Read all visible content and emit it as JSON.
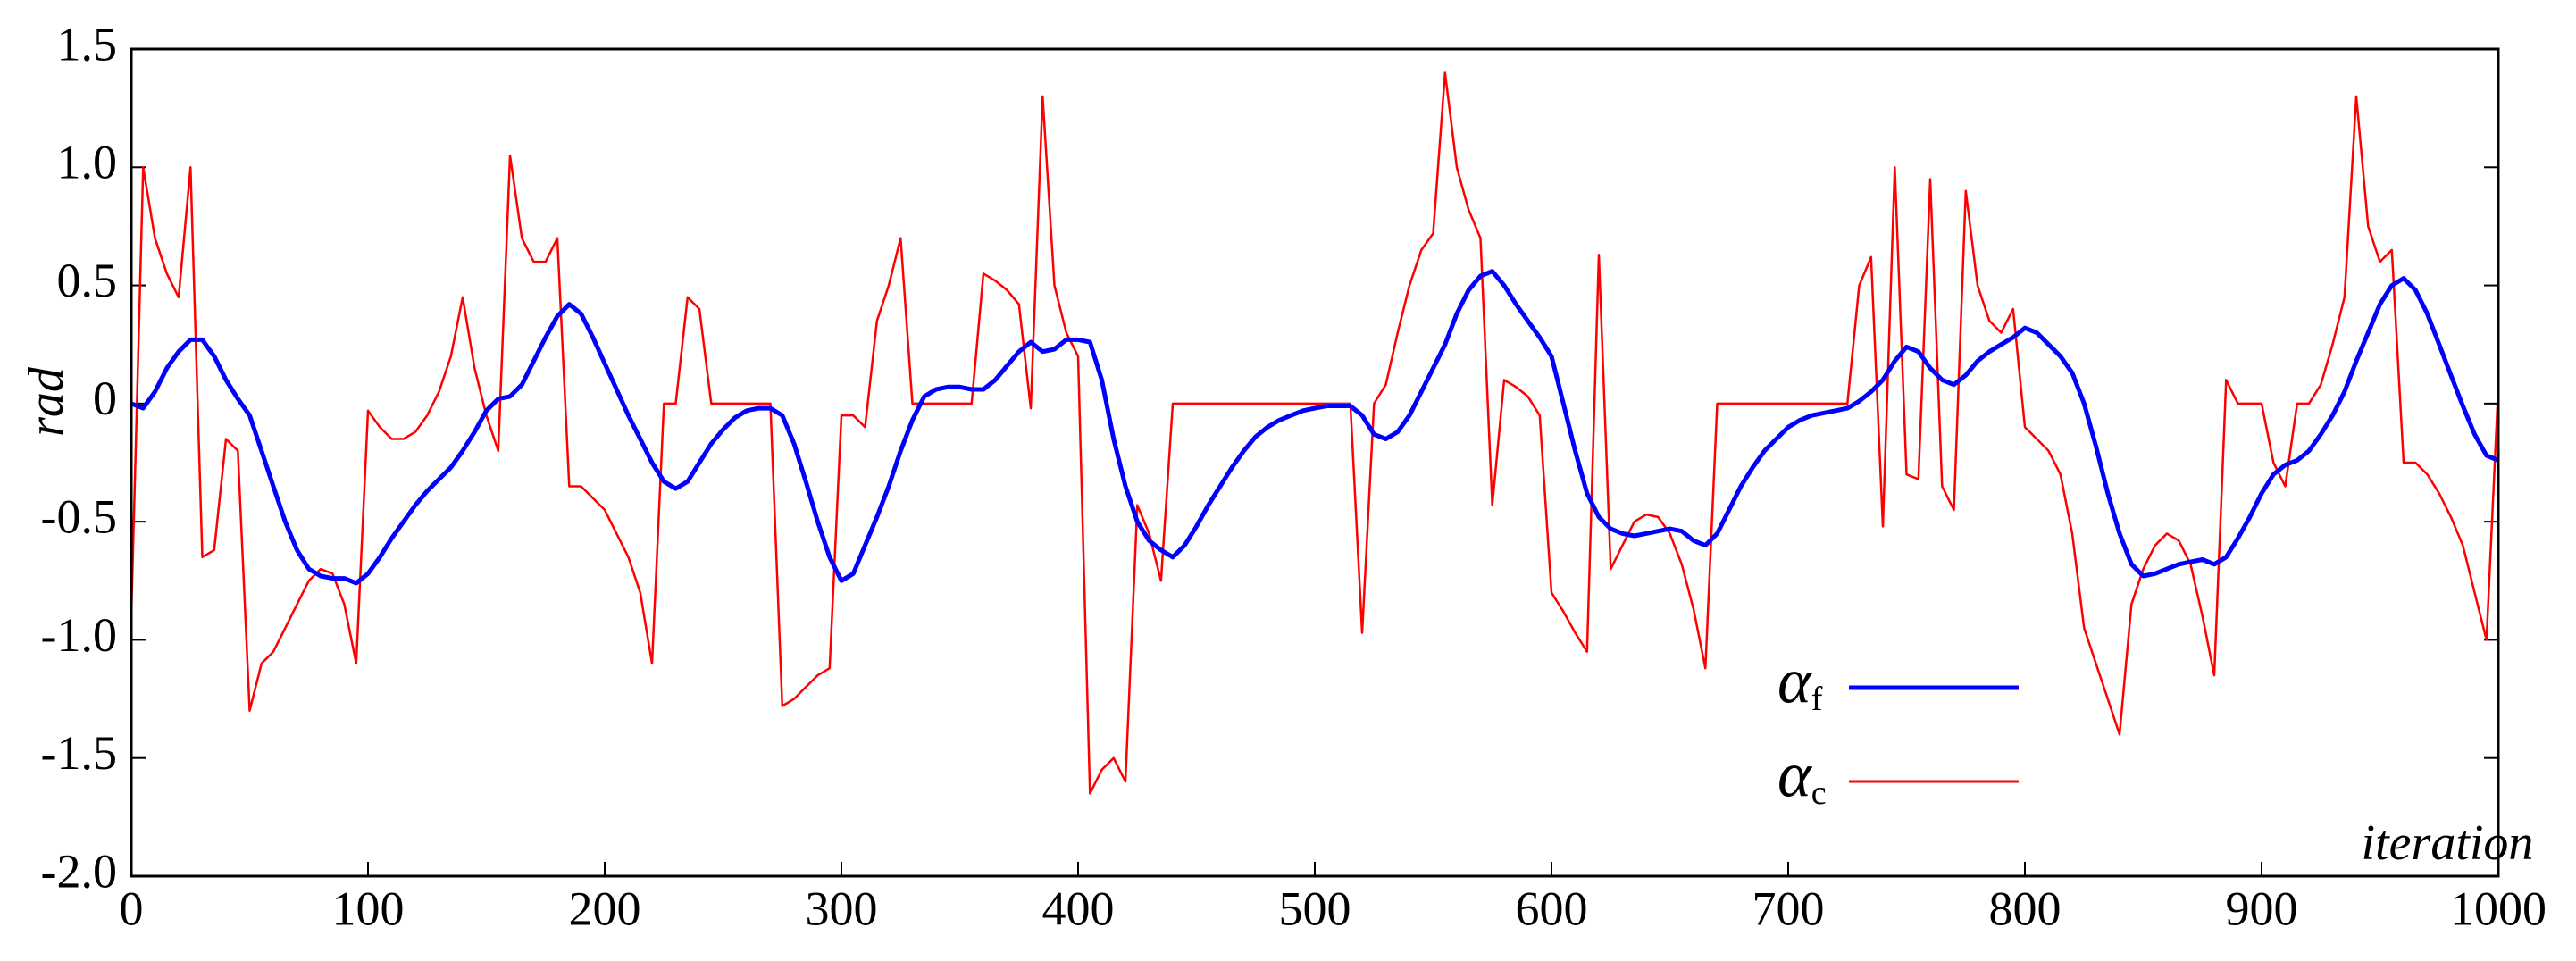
{
  "chart_data": {
    "type": "line",
    "ylabel": "rad",
    "xlabel": "iteration",
    "xlim": [
      0,
      1000
    ],
    "xticks": [
      0,
      100,
      200,
      300,
      400,
      500,
      600,
      700,
      800,
      900,
      1000
    ],
    "ylim": [
      -2.0,
      1.5
    ],
    "yticks": [
      {
        "value": -2.0,
        "label": "-2.0"
      },
      -1.5,
      {
        "value": -1.0,
        "label": "-1.0"
      },
      -0.5,
      0,
      0.5,
      {
        "value": 1.0,
        "label": "1.0"
      },
      1.5
    ],
    "legend": "lower right",
    "x": [
      0,
      5,
      10,
      15,
      20,
      25,
      30,
      35,
      40,
      45,
      50,
      55,
      60,
      65,
      70,
      75,
      80,
      85,
      90,
      95,
      100,
      105,
      110,
      115,
      120,
      125,
      130,
      135,
      140,
      145,
      150,
      155,
      160,
      165,
      170,
      175,
      180,
      185,
      190,
      195,
      200,
      205,
      210,
      215,
      220,
      225,
      230,
      235,
      240,
      245,
      250,
      255,
      260,
      265,
      270,
      275,
      280,
      285,
      290,
      295,
      300,
      305,
      310,
      315,
      320,
      325,
      330,
      335,
      340,
      345,
      350,
      355,
      360,
      365,
      370,
      375,
      380,
      385,
      390,
      395,
      400,
      405,
      410,
      415,
      420,
      425,
      430,
      435,
      440,
      445,
      450,
      455,
      460,
      465,
      470,
      475,
      480,
      485,
      490,
      495,
      500,
      505,
      510,
      515,
      520,
      525,
      530,
      535,
      540,
      545,
      550,
      555,
      560,
      565,
      570,
      575,
      580,
      585,
      590,
      595,
      600,
      605,
      610,
      615,
      620,
      625,
      630,
      635,
      640,
      645,
      650,
      655,
      660,
      665,
      670,
      675,
      680,
      685,
      690,
      695,
      700,
      705,
      710,
      715,
      720,
      725,
      730,
      735,
      740,
      745,
      750,
      755,
      760,
      765,
      770,
      775,
      780,
      785,
      790,
      795,
      800,
      805,
      810,
      815,
      820,
      825,
      830,
      835,
      840,
      845,
      850,
      855,
      860,
      865,
      870,
      875,
      880,
      885,
      890,
      895,
      900,
      905,
      910,
      915,
      920,
      925,
      930,
      935,
      940,
      945,
      950,
      955,
      960,
      965,
      970,
      975,
      980,
      985,
      990,
      995,
      1000
    ],
    "series": [
      {
        "name": "αf",
        "color": "#0000ff",
        "values": [
          0,
          -0.02,
          0.05,
          0.15,
          0.22,
          0.27,
          0.27,
          0.2,
          0.1,
          0.02,
          -0.05,
          -0.2,
          -0.35,
          -0.5,
          -0.62,
          -0.7,
          -0.73,
          -0.74,
          -0.74,
          -0.76,
          -0.72,
          -0.65,
          -0.57,
          -0.5,
          -0.43,
          -0.37,
          -0.32,
          -0.27,
          -0.2,
          -0.12,
          -0.03,
          0.02,
          0.03,
          0.08,
          0.18,
          0.28,
          0.37,
          0.42,
          0.38,
          0.28,
          0.17,
          0.06,
          -0.05,
          -0.15,
          -0.25,
          -0.33,
          -0.36,
          -0.33,
          -0.25,
          -0.17,
          -0.11,
          -0.06,
          -0.03,
          -0.02,
          -0.02,
          -0.05,
          -0.17,
          -0.33,
          -0.5,
          -0.65,
          -0.75,
          -0.72,
          -0.6,
          -0.48,
          -0.35,
          -0.2,
          -0.07,
          0.03,
          0.06,
          0.07,
          0.07,
          0.06,
          0.06,
          0.1,
          0.16,
          0.22,
          0.26,
          0.22,
          0.23,
          0.27,
          0.27,
          0.26,
          0.1,
          -0.15,
          -0.35,
          -0.5,
          -0.58,
          -0.62,
          -0.65,
          -0.6,
          -0.52,
          -0.43,
          -0.35,
          -0.27,
          -0.2,
          -0.14,
          -0.1,
          -0.07,
          -0.05,
          -0.03,
          -0.02,
          -0.01,
          -0.01,
          -0.01,
          -0.05,
          -0.13,
          -0.15,
          -0.12,
          -0.05,
          0.05,
          0.15,
          0.25,
          0.38,
          0.48,
          0.54,
          0.56,
          0.5,
          0.42,
          0.35,
          0.28,
          0.2,
          0,
          -0.2,
          -0.38,
          -0.48,
          -0.53,
          -0.55,
          -0.56,
          -0.55,
          -0.54,
          -0.53,
          -0.54,
          -0.58,
          -0.6,
          -0.55,
          -0.45,
          -0.35,
          -0.27,
          -0.2,
          -0.15,
          -0.1,
          -0.07,
          -0.05,
          -0.04,
          -0.03,
          -0.02,
          0.01,
          0.05,
          0.1,
          0.18,
          0.24,
          0.22,
          0.15,
          0.1,
          0.08,
          0.12,
          0.18,
          0.22,
          0.25,
          0.28,
          0.32,
          0.3,
          0.25,
          0.2,
          0.13,
          0,
          -0.18,
          -0.38,
          -0.55,
          -0.68,
          -0.73,
          -0.72,
          -0.7,
          -0.68,
          -0.67,
          -0.66,
          -0.68,
          -0.65,
          -0.57,
          -0.48,
          -0.38,
          -0.3,
          -0.26,
          -0.24,
          -0.2,
          -0.13,
          -0.05,
          0.05,
          0.18,
          0.3,
          0.42,
          0.5,
          0.53,
          0.48,
          0.38,
          0.25,
          0.12,
          -0.01,
          -0.13,
          -0.22,
          -0.24
        ]
      },
      {
        "name": "αc",
        "color": "#ff0000",
        "values": [
          -0.9,
          1.0,
          0.7,
          0.55,
          0.45,
          1.0,
          -0.65,
          -0.62,
          -0.15,
          -0.2,
          -1.3,
          -1.1,
          -1.05,
          -0.95,
          -0.85,
          -0.75,
          -0.7,
          -0.72,
          -0.85,
          -1.1,
          -0.03,
          -0.1,
          -0.15,
          -0.15,
          -0.12,
          -0.05,
          0.05,
          0.2,
          0.45,
          0.15,
          -0.05,
          -0.2,
          1.05,
          0.7,
          0.6,
          0.6,
          0.7,
          -0.35,
          -0.35,
          -0.4,
          -0.45,
          -0.55,
          -0.65,
          -0.8,
          -1.1,
          0,
          0,
          0.45,
          0.4,
          0,
          0,
          0,
          0,
          0,
          0,
          -1.28,
          -1.25,
          -1.2,
          -1.15,
          -1.12,
          -0.05,
          -0.05,
          -0.1,
          0.35,
          0.5,
          0.7,
          0,
          0,
          0,
          0,
          0,
          0,
          0.55,
          0.52,
          0.48,
          0.42,
          -0.02,
          1.3,
          0.5,
          0.3,
          0.2,
          -1.65,
          -1.55,
          -1.5,
          -1.6,
          -0.43,
          -0.55,
          -0.75,
          0,
          0,
          0,
          0,
          0,
          0,
          0,
          0,
          0,
          0,
          0,
          0,
          0,
          0,
          0,
          0,
          -0.97,
          0,
          0.08,
          0.3,
          0.5,
          0.65,
          0.72,
          1.4,
          1.0,
          0.82,
          0.7,
          -0.43,
          0.1,
          0.07,
          0.03,
          -0.05,
          -0.8,
          -0.88,
          -0.97,
          -1.05,
          0.63,
          -0.7,
          -0.6,
          -0.5,
          -0.47,
          -0.48,
          -0.55,
          -0.68,
          -0.87,
          -1.12,
          0,
          0,
          0,
          0,
          0,
          0,
          0,
          0,
          0,
          0,
          0,
          0,
          0.5,
          0.62,
          -0.52,
          1.0,
          -0.3,
          -0.32,
          0.95,
          -0.35,
          -0.45,
          0.9,
          0.5,
          0.35,
          0.3,
          0.4,
          -0.1,
          -0.15,
          -0.2,
          -0.3,
          -0.55,
          -0.95,
          -1.1,
          -1.25,
          -1.4,
          -0.85,
          -0.7,
          -0.6,
          -0.55,
          -0.58,
          -0.68,
          -0.9,
          -1.15,
          0.1,
          0,
          0,
          0,
          -0.25,
          -0.35,
          0,
          0,
          0.08,
          0.25,
          0.45,
          1.3,
          0.75,
          0.6,
          0.65,
          -0.25,
          -0.25,
          -0.3,
          -0.38,
          -0.48,
          -0.6,
          -0.8,
          -1.0,
          0.07
        ]
      }
    ]
  }
}
